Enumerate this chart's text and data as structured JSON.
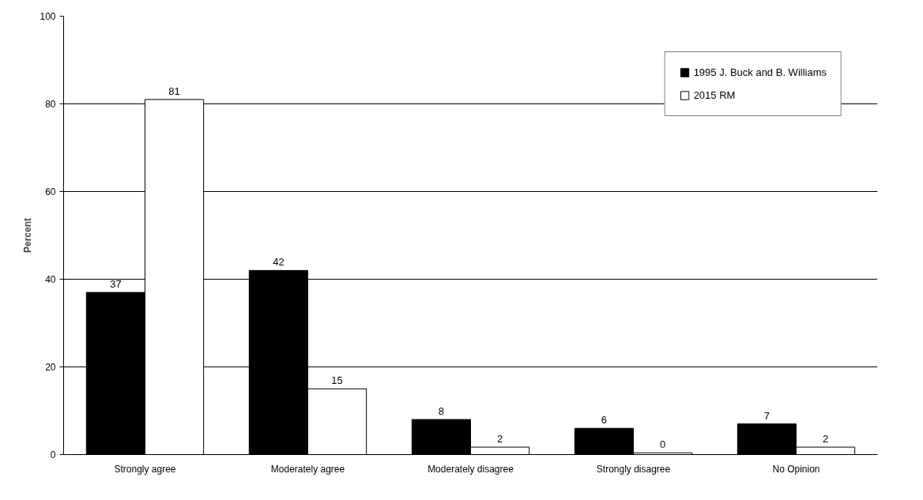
{
  "chart_data": {
    "type": "bar",
    "ylabel": "Percent",
    "categories": [
      "Strongly agree",
      "Moderately agree",
      "Moderately disagree",
      "Strongly disagree",
      "No Opinion"
    ],
    "series": [
      {
        "name": "1995 J. Buck and B. Williams",
        "color": "#000000",
        "values": [
          37,
          42,
          8,
          6,
          7
        ],
        "value_labels": [
          "37",
          "42",
          "8",
          "6",
          "7"
        ]
      },
      {
        "name": "2015 RM",
        "color": "#ffffff",
        "values": [
          81,
          15,
          1.7,
          0.4,
          1.7
        ],
        "value_labels": [
          "81",
          "15",
          "2",
          "0",
          "2"
        ]
      }
    ],
    "ylim": [
      0,
      100
    ],
    "yticks": [
      0,
      20,
      40,
      60,
      80,
      100
    ],
    "grid": "y",
    "legend": "top right"
  }
}
